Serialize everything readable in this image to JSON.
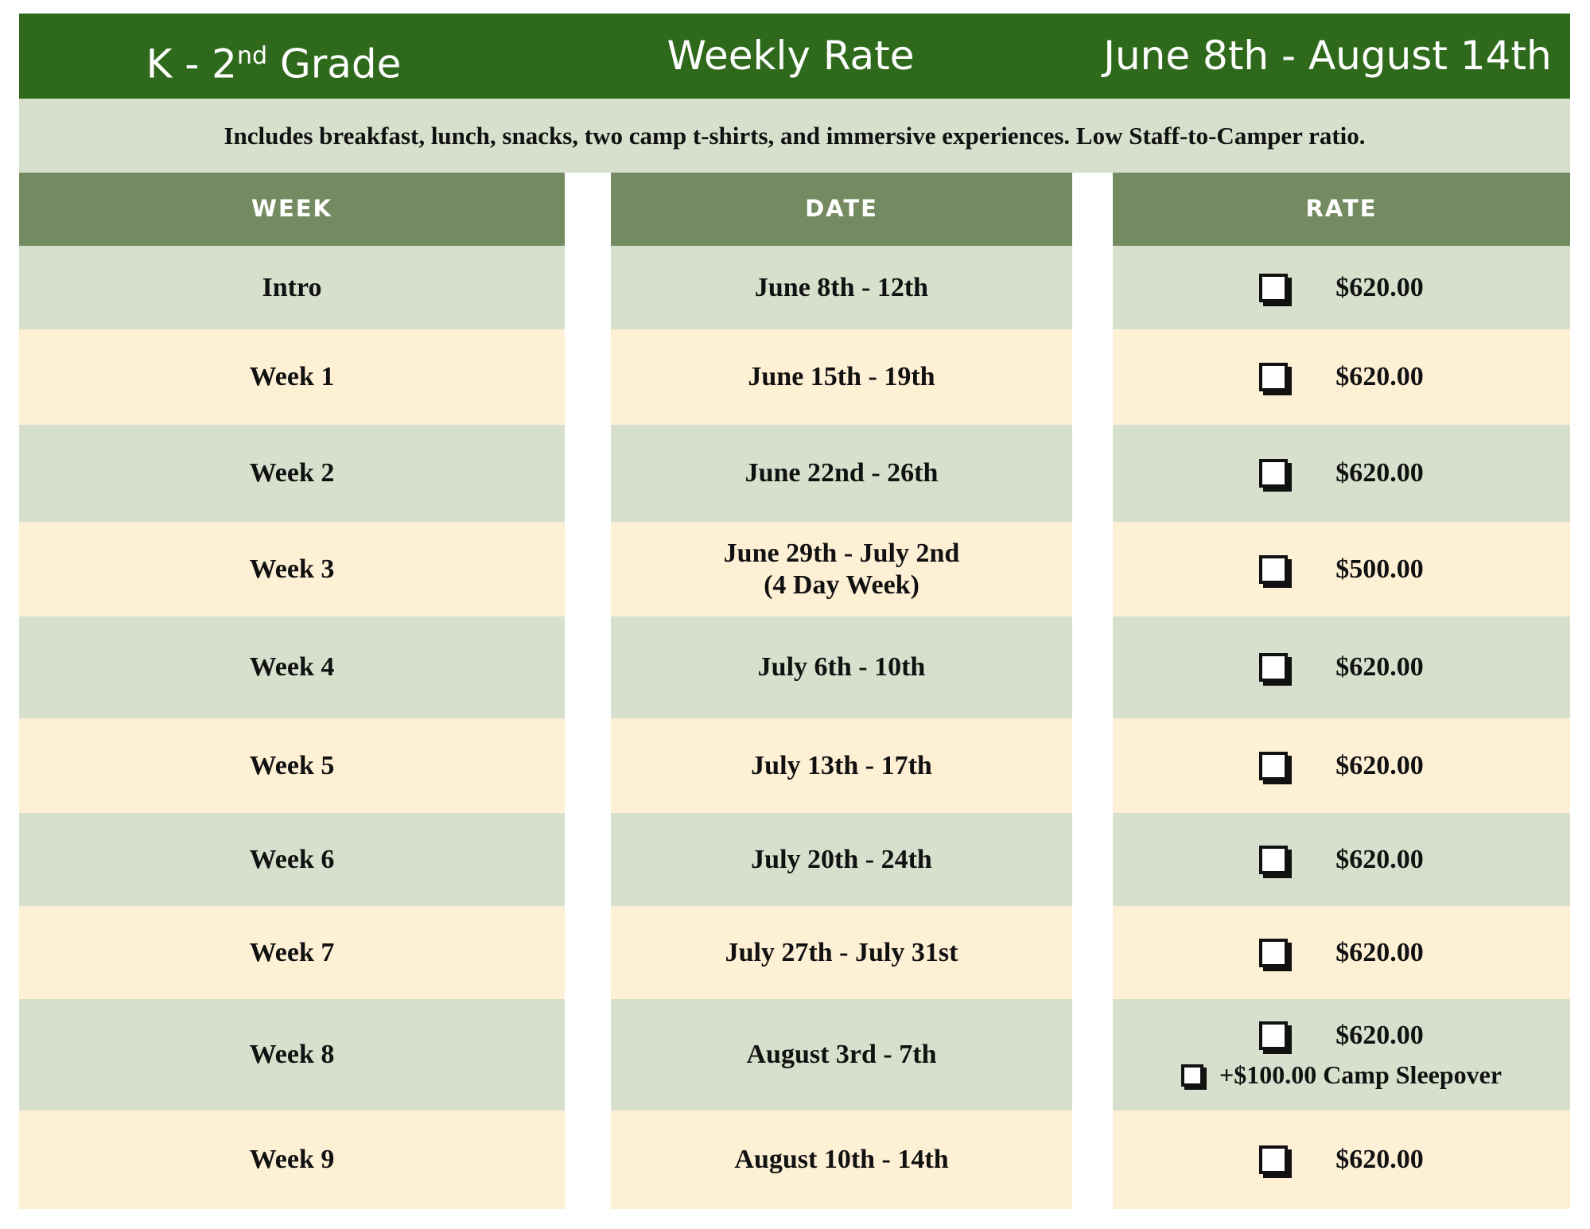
{
  "header": {
    "grade": {
      "text": "K - 2",
      "sup": "nd",
      "rest": "Grade"
    },
    "rate_title": "Weekly Rate",
    "season": "June 8th - August 14th"
  },
  "subtitle": "Includes breakfast, lunch, snacks, two camp t-shirts, and immersive experiences. Low Staff-to-Camper ratio.",
  "columns": [
    "WEEK",
    "DATE",
    "RATE"
  ],
  "rows": [
    {
      "week": "Intro",
      "date": [
        "June 8th - 12th"
      ],
      "rates": [
        "$620.00"
      ]
    },
    {
      "week": "Week 1",
      "date": [
        "June 15th - 19th"
      ],
      "rates": [
        "$620.00"
      ]
    },
    {
      "week": "Week 2",
      "date": [
        "June 22nd - 26th"
      ],
      "rates": [
        "$620.00"
      ]
    },
    {
      "week": "Week 3",
      "date": [
        "June 29th - July 2nd",
        "(4 Day Week)"
      ],
      "rates": [
        "$500.00"
      ]
    },
    {
      "week": "Week 4",
      "date": [
        "July 6th - 10th"
      ],
      "rates": [
        "$620.00"
      ]
    },
    {
      "week": "Week 5",
      "date": [
        "July 13th - 17th"
      ],
      "rates": [
        "$620.00"
      ]
    },
    {
      "week": "Week 6",
      "date": [
        "July 20th - 24th"
      ],
      "rates": [
        "$620.00"
      ]
    },
    {
      "week": "Week 7",
      "date": [
        "July 27th - July 31st"
      ],
      "rates": [
        "$620.00"
      ]
    },
    {
      "week": "Week 8",
      "date": [
        "August 3rd - 7th"
      ],
      "rates": [
        "$620.00",
        "+$100.00 Camp Sleepover"
      ]
    },
    {
      "week": "Week 9",
      "date": [
        "August 10th - 14th"
      ],
      "rates": [
        "$620.00"
      ]
    }
  ]
}
